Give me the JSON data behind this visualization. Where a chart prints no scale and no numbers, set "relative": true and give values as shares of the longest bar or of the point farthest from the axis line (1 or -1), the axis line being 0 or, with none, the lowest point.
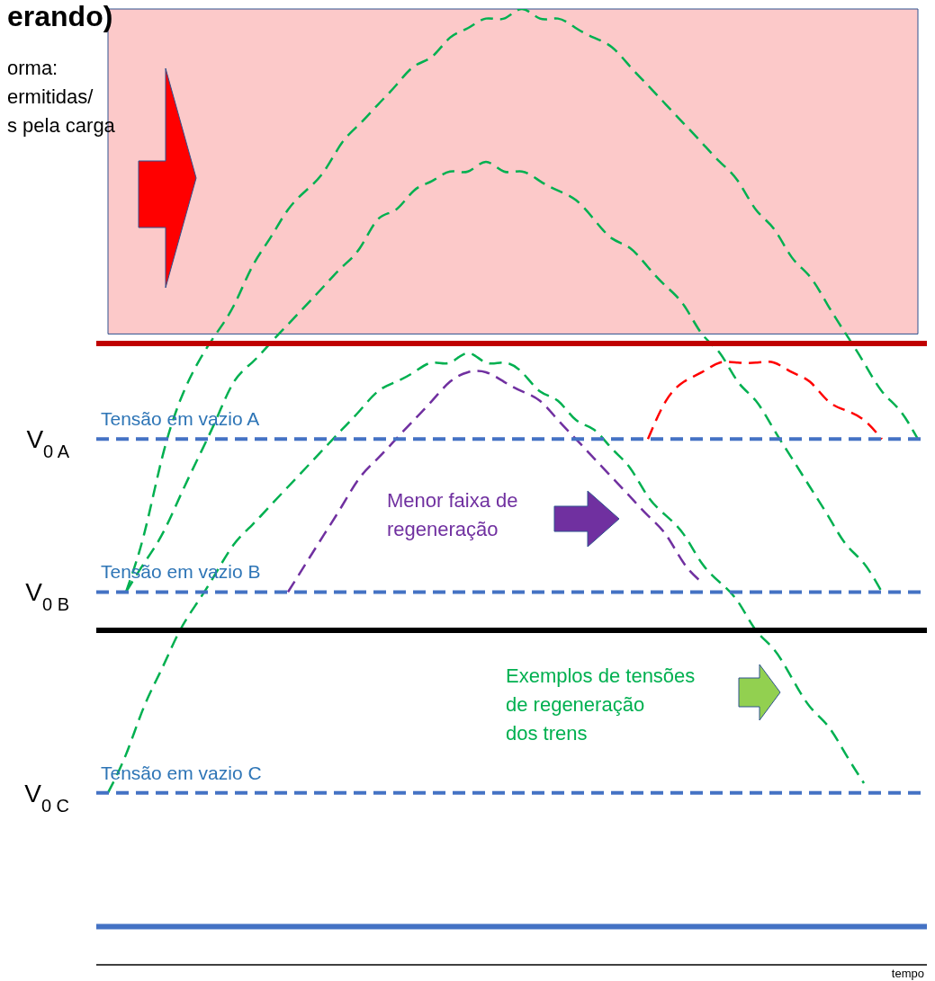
{
  "chart_data": {
    "type": "line",
    "title": "erando)",
    "xlabel": "tempo",
    "relative": true,
    "categories": [
      null,
      null,
      null,
      null,
      null,
      null,
      null,
      null,
      null,
      null,
      null,
      null,
      null,
      null,
      null,
      null,
      null,
      null,
      null,
      null,
      null,
      null,
      null,
      null,
      null,
      null,
      null,
      null,
      null,
      null,
      null,
      null,
      null,
      null,
      null,
      null,
      null,
      null,
      null,
      null,
      null,
      null,
      null,
      null,
      null,
      null
    ],
    "series": [
      {
        "color": "#00b050",
        "line_style": "dashed",
        "values": [
          null,
          0.39,
          0.45,
          0.53,
          0.59,
          0.63,
          0.66,
          0.69,
          0.73,
          0.76,
          0.79,
          0.81,
          0.83,
          0.86,
          0.88,
          0.9,
          0.92,
          0.94,
          0.95,
          0.97,
          0.98,
          0.99,
          0.99,
          1.0,
          0.99,
          0.99,
          0.98,
          0.97,
          0.96,
          0.94,
          0.92,
          0.9,
          0.88,
          0.86,
          0.84,
          0.82,
          0.79,
          0.77,
          0.74,
          0.72,
          0.69,
          0.66,
          0.63,
          0.6,
          0.58,
          0.55
        ]
      },
      {
        "color": "#00b050",
        "line_style": "dashed",
        "values": [
          null,
          0.39,
          0.42,
          0.45,
          0.49,
          0.53,
          0.57,
          0.61,
          0.63,
          0.65,
          0.67,
          0.69,
          0.71,
          0.73,
          0.75,
          0.78,
          0.79,
          0.81,
          0.82,
          0.83,
          0.83,
          0.84,
          0.83,
          0.83,
          0.82,
          0.81,
          0.8,
          0.78,
          0.76,
          0.75,
          0.73,
          0.71,
          0.69,
          0.66,
          0.64,
          0.61,
          0.59,
          0.56,
          0.53,
          0.5,
          0.47,
          0.44,
          0.42,
          0.39,
          null,
          null
        ]
      },
      {
        "color": "#00b050",
        "line_style": "dashed",
        "values": [
          0.18,
          0.22,
          0.27,
          0.31,
          0.35,
          0.38,
          0.41,
          0.44,
          0.46,
          0.48,
          0.5,
          0.52,
          0.54,
          0.56,
          0.58,
          0.6,
          0.61,
          0.62,
          0.63,
          0.63,
          0.64,
          0.63,
          0.63,
          0.62,
          0.6,
          0.59,
          0.57,
          0.56,
          0.54,
          0.52,
          0.49,
          0.47,
          0.45,
          0.42,
          0.4,
          0.38,
          0.35,
          0.33,
          0.3,
          0.27,
          0.25,
          0.22,
          0.19,
          null,
          null,
          null
        ]
      },
      {
        "color": "#7030a0",
        "line_style": "dashed",
        "values": [
          null,
          null,
          null,
          null,
          null,
          null,
          null,
          null,
          null,
          null,
          0.39,
          0.42,
          0.45,
          0.48,
          0.51,
          0.53,
          0.55,
          0.57,
          0.59,
          0.61,
          0.62,
          0.62,
          0.61,
          0.6,
          0.59,
          0.57,
          0.55,
          0.53,
          0.51,
          0.49,
          0.47,
          0.45,
          0.42,
          0.4,
          null,
          null,
          null,
          null,
          null,
          null,
          null,
          null,
          null,
          null,
          null,
          null
        ]
      },
      {
        "color": "#ff0000",
        "line_style": "dashed",
        "values": [
          null,
          null,
          null,
          null,
          null,
          null,
          null,
          null,
          null,
          null,
          null,
          null,
          null,
          null,
          null,
          null,
          null,
          null,
          null,
          null,
          null,
          null,
          null,
          null,
          null,
          null,
          null,
          null,
          null,
          null,
          0.55,
          0.59,
          0.61,
          0.62,
          0.63,
          0.63,
          0.63,
          0.63,
          0.62,
          0.61,
          0.59,
          0.58,
          0.57,
          0.55,
          null,
          null
        ]
      }
    ],
    "ref_lines": [
      {
        "axis": "y",
        "value": 0.65,
        "color": "#c00000",
        "line_style": "solid"
      },
      {
        "axis": "y",
        "value": 0.55,
        "label": "V$_{0 A}$",
        "color": "#4472c4",
        "line_style": "dashed"
      },
      {
        "axis": "y",
        "value": 0.39,
        "label": "V$_{0 B}$",
        "color": "#4472c4",
        "line_style": "dashed"
      },
      {
        "axis": "y",
        "value": 0.35,
        "color": "#000000",
        "line_style": "solid"
      },
      {
        "axis": "y",
        "value": 0.18,
        "label": "V$_{0 C}$",
        "color": "#4472c4",
        "line_style": "dashed"
      },
      {
        "axis": "y",
        "value": 0.04,
        "color": "#4472c4",
        "line_style": "solid"
      }
    ],
    "bands": [
      {
        "axis": "y",
        "from": 0.66,
        "to": 1.0,
        "color": "#fcc9c9"
      }
    ],
    "annotations": [
      {
        "text": "Tensão em vazio A",
        "y": 0.55
      },
      {
        "text": "Tensão em vazio B",
        "y": 0.39
      },
      {
        "text": "Tensão em vazio C",
        "y": 0.18
      },
      "orma:\nermitidas/\ns pela carga",
      "Menor faixa de\nregeneração",
      "Exemplos de tensões\nde regeneração\ndos trens"
    ]
  }
}
